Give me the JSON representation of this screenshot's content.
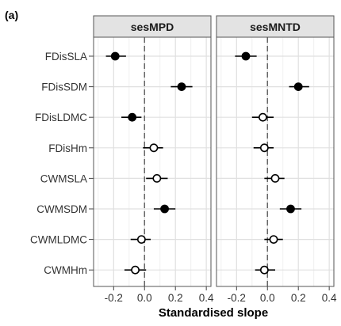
{
  "panel_tag": "(a)",
  "chart_data": {
    "type": "scatter",
    "subtype": "dot-whisker, faceted",
    "xlabel": "Standardised slope",
    "xlim": [
      -0.33,
      0.43
    ],
    "xticks": [
      -0.2,
      0.0,
      0.2,
      0.4
    ],
    "xtick_labels": [
      "-0.2",
      "0.0",
      "0.2",
      "0.4"
    ],
    "reference_line": {
      "x": 0,
      "style": "dashed"
    },
    "grid": true,
    "categories": [
      "FDisSLA",
      "FDisSDM",
      "FDisLDMC",
      "FDisHm",
      "CWMSLA",
      "CWMSDM",
      "CWMLDMC",
      "CWMHm"
    ],
    "panels": [
      {
        "title": "sesMPD",
        "points": [
          {
            "category": "FDisSLA",
            "estimate": -0.19,
            "lower": -0.25,
            "upper": -0.12,
            "significant": true
          },
          {
            "category": "FDisSDM",
            "estimate": 0.24,
            "lower": 0.17,
            "upper": 0.31,
            "significant": true
          },
          {
            "category": "FDisLDMC",
            "estimate": -0.08,
            "lower": -0.15,
            "upper": -0.02,
            "significant": true
          },
          {
            "category": "FDisHm",
            "estimate": 0.06,
            "lower": -0.01,
            "upper": 0.12,
            "significant": false
          },
          {
            "category": "CWMSLA",
            "estimate": 0.08,
            "lower": 0.01,
            "upper": 0.15,
            "significant": false
          },
          {
            "category": "CWMSDM",
            "estimate": 0.13,
            "lower": 0.06,
            "upper": 0.2,
            "significant": true
          },
          {
            "category": "CWMLDMC",
            "estimate": -0.02,
            "lower": -0.09,
            "upper": 0.04,
            "significant": false
          },
          {
            "category": "CWMHm",
            "estimate": -0.06,
            "lower": -0.13,
            "upper": 0.01,
            "significant": false
          }
        ]
      },
      {
        "title": "sesMNTD",
        "points": [
          {
            "category": "FDisSLA",
            "estimate": -0.14,
            "lower": -0.21,
            "upper": -0.07,
            "significant": true
          },
          {
            "category": "FDisSDM",
            "estimate": 0.2,
            "lower": 0.14,
            "upper": 0.27,
            "significant": true
          },
          {
            "category": "FDisLDMC",
            "estimate": -0.03,
            "lower": -0.1,
            "upper": 0.04,
            "significant": false
          },
          {
            "category": "FDisHm",
            "estimate": -0.02,
            "lower": -0.09,
            "upper": 0.04,
            "significant": false
          },
          {
            "category": "CWMSLA",
            "estimate": 0.05,
            "lower": -0.02,
            "upper": 0.11,
            "significant": false
          },
          {
            "category": "CWMSDM",
            "estimate": 0.15,
            "lower": 0.08,
            "upper": 0.22,
            "significant": true
          },
          {
            "category": "CWMLDMC",
            "estimate": 0.04,
            "lower": -0.02,
            "upper": 0.1,
            "significant": false
          },
          {
            "category": "CWMHm",
            "estimate": -0.02,
            "lower": -0.08,
            "upper": 0.05,
            "significant": false
          }
        ]
      }
    ]
  }
}
